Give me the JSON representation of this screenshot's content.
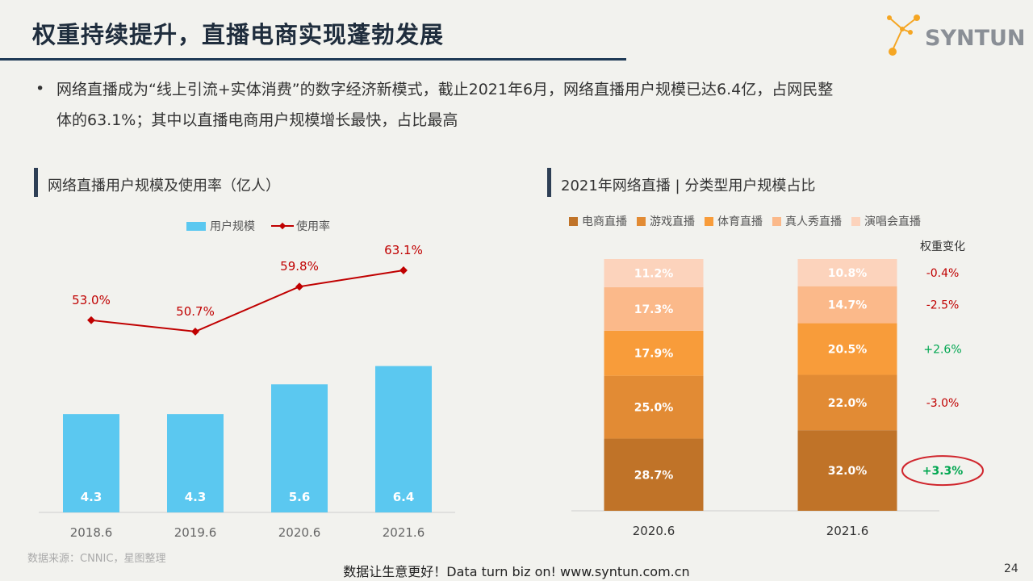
{
  "page": {
    "title": "权重持续提升，直播电商实现蓬勃发展",
    "logo_text": "SYNTUN",
    "bullet_line1": "网络直播成为“线上引流+实体消费”的数字经济新模式，截止2021年6月，网络直播用户规模已达6.4亿，占网民整",
    "bullet_line2": "体的63.1%；其中以直播电商用户规模增长最快，占比最高",
    "source": "数据来源：CNNIC，星图整理",
    "footer": "数据让生意更好！Data turn biz on!  www.syntun.com.cn",
    "page_number": "24"
  },
  "colors": {
    "bar": "#5bc8f0",
    "line": "#c00000",
    "ecommerce": "#c07328",
    "game": "#e28b34",
    "sports": "#f89c3a",
    "reality": "#fbb98a",
    "concert": "#fcd3bc",
    "negative": "#c00000",
    "positive": "#00a650"
  },
  "chart_data": [
    {
      "type": "bar",
      "title": "网络直播用户规模及使用率（亿人）",
      "categories": [
        "2018.6",
        "2019.6",
        "2020.6",
        "2021.6"
      ],
      "series": [
        {
          "name": "用户规模",
          "type": "bar",
          "values": [
            4.3,
            4.3,
            5.6,
            6.4
          ],
          "labels": [
            "4.3",
            "4.3",
            "5.6",
            "6.4"
          ]
        },
        {
          "name": "使用率",
          "type": "line",
          "values": [
            53.0,
            50.7,
            59.8,
            63.1
          ],
          "labels": [
            "53.0%",
            "50.7%",
            "59.8%",
            "63.1%"
          ]
        }
      ]
    },
    {
      "type": "bar",
      "stacked": true,
      "title": "2021年网络直播 | 分类型用户规模占比",
      "categories": [
        "2020.6",
        "2021.6"
      ],
      "series": [
        {
          "name": "电商直播",
          "values": [
            28.7,
            32.0
          ],
          "labels": [
            "28.7%",
            "32.0%"
          ],
          "change": "+3.3%"
        },
        {
          "name": "游戏直播",
          "values": [
            25.0,
            22.0
          ],
          "labels": [
            "25.0%",
            "22.0%"
          ],
          "change": "-3.0%"
        },
        {
          "name": "体育直播",
          "values": [
            17.9,
            20.5
          ],
          "labels": [
            "17.9%",
            "20.5%"
          ],
          "change": "+2.6%"
        },
        {
          "name": "真人秀直播",
          "values": [
            17.3,
            14.7
          ],
          "labels": [
            "17.3%",
            "14.7%"
          ],
          "change": "-2.5%"
        },
        {
          "name": "演唱会直播",
          "values": [
            11.2,
            10.8
          ],
          "labels": [
            "11.2%",
            "10.8%"
          ],
          "change": "-0.4%"
        }
      ],
      "change_header": "权重变化"
    }
  ]
}
